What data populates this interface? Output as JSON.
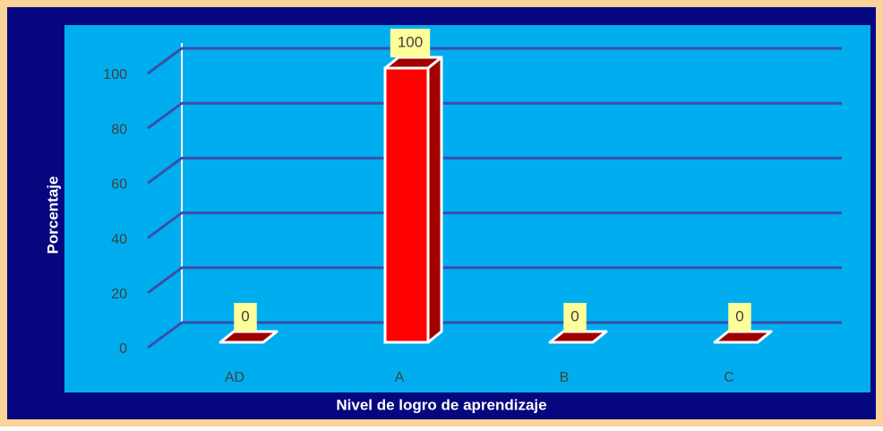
{
  "chart_data": {
    "type": "bar3d",
    "categories": [
      "AD",
      "A",
      "B",
      "C"
    ],
    "values": [
      0,
      100,
      0,
      0
    ],
    "color": "#ff0000",
    "x_label": "Nivel de logro de aprendizaje",
    "y_label": "Porcentaje",
    "ylim": [
      0,
      100
    ],
    "yticks": [
      0,
      20,
      40,
      60,
      80,
      100
    ],
    "grid": true
  }
}
